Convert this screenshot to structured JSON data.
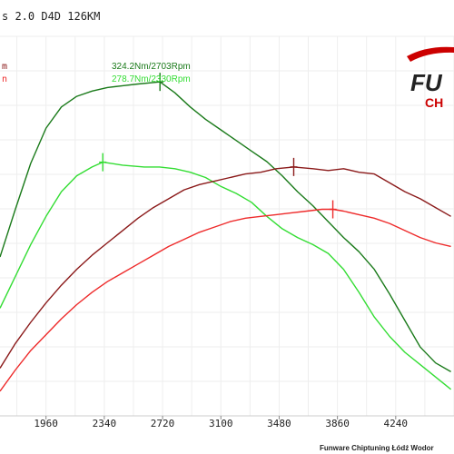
{
  "header": {
    "title": "s 2.0 D4D 126KM",
    "left_label_top": "m",
    "left_label_bottom": "n"
  },
  "logo": {
    "line1": "FU",
    "line2": "CH",
    "colors": {
      "primary": "#cc0000",
      "dark": "#222222"
    }
  },
  "footer": {
    "credit": "Funware Chiptuning Łódź Wodor"
  },
  "chart_data": {
    "type": "line",
    "title": "",
    "xlabel": "",
    "ylabel": "",
    "xlim": [
      1660,
      4620
    ],
    "ylim": [
      135,
      350
    ],
    "x_ticks": [
      1960,
      2340,
      2720,
      3100,
      3480,
      3860,
      4240
    ],
    "grid": true,
    "annotations": [
      {
        "id": "tuned_peak",
        "text": "324.2Nm/2703Rpm",
        "color": "#1a7a1a"
      },
      {
        "id": "stock_peak",
        "text": "278.7Nm/2330Rpm",
        "color": "#33dd33"
      }
    ],
    "series": [
      {
        "id": "tuned_torque",
        "color": "#1a7a1a",
        "peak": [
          2703,
          324.2
        ],
        "points": [
          [
            1660,
            225
          ],
          [
            1760,
            252
          ],
          [
            1860,
            278
          ],
          [
            1960,
            298
          ],
          [
            2060,
            310
          ],
          [
            2160,
            316
          ],
          [
            2260,
            319
          ],
          [
            2360,
            321
          ],
          [
            2460,
            322
          ],
          [
            2560,
            323
          ],
          [
            2703,
            324.2
          ],
          [
            2800,
            318
          ],
          [
            2900,
            310
          ],
          [
            3000,
            303
          ],
          [
            3100,
            297
          ],
          [
            3200,
            291
          ],
          [
            3300,
            285
          ],
          [
            3400,
            279
          ],
          [
            3500,
            271
          ],
          [
            3600,
            262
          ],
          [
            3700,
            254
          ],
          [
            3800,
            245
          ],
          [
            3900,
            236
          ],
          [
            4000,
            228
          ],
          [
            4100,
            218
          ],
          [
            4200,
            204
          ],
          [
            4300,
            189
          ],
          [
            4400,
            174
          ],
          [
            4500,
            165
          ],
          [
            4600,
            160
          ]
        ]
      },
      {
        "id": "stock_torque",
        "color": "#33dd33",
        "peak": [
          2330,
          278.7
        ],
        "points": [
          [
            1660,
            196
          ],
          [
            1760,
            214
          ],
          [
            1860,
            232
          ],
          [
            1960,
            248
          ],
          [
            2060,
            262
          ],
          [
            2160,
            271
          ],
          [
            2260,
            276
          ],
          [
            2330,
            278.7
          ],
          [
            2460,
            277
          ],
          [
            2600,
            276
          ],
          [
            2700,
            276
          ],
          [
            2800,
            275
          ],
          [
            2900,
            273
          ],
          [
            3000,
            270
          ],
          [
            3100,
            265
          ],
          [
            3200,
            261
          ],
          [
            3300,
            256
          ],
          [
            3400,
            248
          ],
          [
            3500,
            241
          ],
          [
            3600,
            236
          ],
          [
            3700,
            232
          ],
          [
            3800,
            227
          ],
          [
            3900,
            218
          ],
          [
            4000,
            205
          ],
          [
            4100,
            191
          ],
          [
            4200,
            180
          ],
          [
            4300,
            171
          ],
          [
            4400,
            164
          ],
          [
            4500,
            157
          ],
          [
            4600,
            150
          ]
        ]
      },
      {
        "id": "tuned_power",
        "color": "#8b1a1a",
        "peak": [
          3575,
          276
        ],
        "points": [
          [
            1660,
            162
          ],
          [
            1760,
            176
          ],
          [
            1860,
            188
          ],
          [
            1960,
            199
          ],
          [
            2060,
            209
          ],
          [
            2160,
            218
          ],
          [
            2260,
            226
          ],
          [
            2360,
            233
          ],
          [
            2460,
            240
          ],
          [
            2560,
            247
          ],
          [
            2660,
            253
          ],
          [
            2760,
            258
          ],
          [
            2860,
            263
          ],
          [
            2960,
            266
          ],
          [
            3060,
            268
          ],
          [
            3160,
            270
          ],
          [
            3260,
            272
          ],
          [
            3360,
            273
          ],
          [
            3460,
            275
          ],
          [
            3575,
            276
          ],
          [
            3700,
            275
          ],
          [
            3800,
            274
          ],
          [
            3900,
            275
          ],
          [
            4000,
            273
          ],
          [
            4100,
            272
          ],
          [
            4200,
            267
          ],
          [
            4300,
            262
          ],
          [
            4400,
            258
          ],
          [
            4500,
            253
          ],
          [
            4600,
            248
          ]
        ]
      },
      {
        "id": "stock_power",
        "color": "#ee2a2a",
        "peak": [
          3830,
          252
        ],
        "points": [
          [
            1660,
            149
          ],
          [
            1760,
            161
          ],
          [
            1860,
            172
          ],
          [
            1960,
            181
          ],
          [
            2060,
            190
          ],
          [
            2160,
            198
          ],
          [
            2260,
            205
          ],
          [
            2360,
            211
          ],
          [
            2460,
            216
          ],
          [
            2560,
            221
          ],
          [
            2660,
            226
          ],
          [
            2760,
            231
          ],
          [
            2860,
            235
          ],
          [
            2960,
            239
          ],
          [
            3060,
            242
          ],
          [
            3160,
            245
          ],
          [
            3260,
            247
          ],
          [
            3360,
            248
          ],
          [
            3460,
            249
          ],
          [
            3560,
            250
          ],
          [
            3660,
            251
          ],
          [
            3760,
            252
          ],
          [
            3830,
            252
          ],
          [
            3900,
            251
          ],
          [
            4000,
            249
          ],
          [
            4100,
            247
          ],
          [
            4200,
            244
          ],
          [
            4300,
            240
          ],
          [
            4400,
            236
          ],
          [
            4500,
            233
          ],
          [
            4600,
            231
          ]
        ]
      }
    ]
  }
}
